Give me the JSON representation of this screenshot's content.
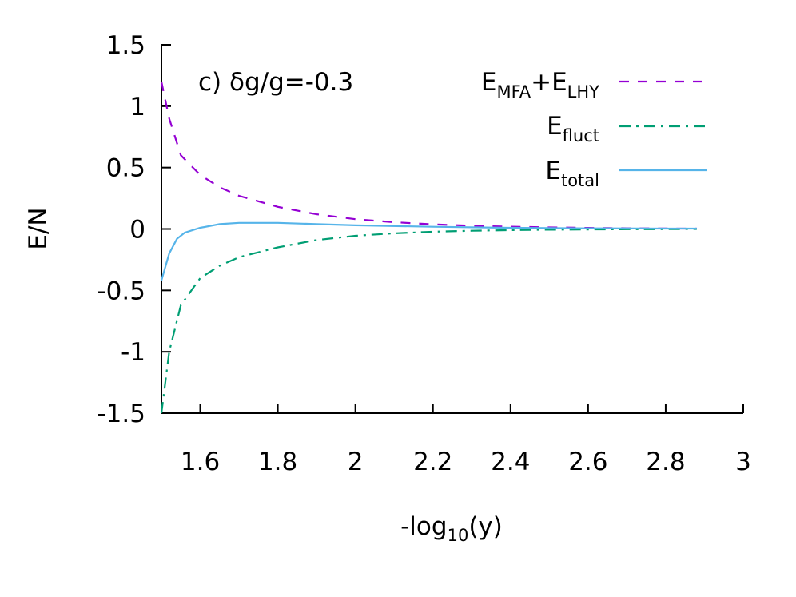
{
  "chart_data": {
    "type": "line",
    "title": "",
    "annotation": "c) δg/g=-0.3",
    "xlabel": {
      "main": "-log",
      "sub": "10",
      "tail": "(y)"
    },
    "ylabel": "E/N",
    "xlim": [
      1.5,
      3.0
    ],
    "ylim": [
      -1.5,
      1.5
    ],
    "x_ticks": [
      1.6,
      1.8,
      2.0,
      2.2,
      2.4,
      2.6,
      2.8,
      3.0
    ],
    "x_tick_labels": [
      "1.6",
      "1.8",
      "2",
      "2.2",
      "2.4",
      "2.6",
      "2.8",
      "3"
    ],
    "y_ticks": [
      -1.5,
      -1.0,
      -0.5,
      0.0,
      0.5,
      1.0,
      1.5
    ],
    "y_tick_labels": [
      "-1.5",
      "-1",
      "-0.5",
      "0",
      "0.5",
      "1",
      "1.5"
    ],
    "legend_position": "top-right",
    "series": [
      {
        "name": "E_MFA+E_LHY",
        "label_main1": "E",
        "label_sub1": "MFA",
        "label_mid": "+E",
        "label_sub2": "LHY",
        "color": "#9400d3",
        "dash": "dashed",
        "x": [
          1.5,
          1.52,
          1.55,
          1.6,
          1.65,
          1.7,
          1.8,
          1.9,
          2.0,
          2.1,
          2.2,
          2.3,
          2.4,
          2.5,
          2.6,
          2.7,
          2.8,
          2.88
        ],
        "y": [
          1.2,
          0.9,
          0.6,
          0.44,
          0.34,
          0.27,
          0.18,
          0.12,
          0.08,
          0.055,
          0.038,
          0.027,
          0.019,
          0.013,
          0.009,
          0.006,
          0.004,
          0.003
        ]
      },
      {
        "name": "E_fluct",
        "label_main1": "E",
        "label_sub1": "fluct",
        "color": "#009e73",
        "dash": "dashdot",
        "x": [
          1.5,
          1.52,
          1.55,
          1.6,
          1.65,
          1.7,
          1.8,
          1.9,
          2.0,
          2.1,
          2.2,
          2.3,
          2.4,
          2.5,
          2.6,
          2.7,
          2.8,
          2.88
        ],
        "y": [
          -1.5,
          -1.0,
          -0.62,
          -0.4,
          -0.3,
          -0.23,
          -0.15,
          -0.09,
          -0.055,
          -0.035,
          -0.022,
          -0.014,
          -0.009,
          -0.006,
          -0.004,
          -0.002,
          -0.001,
          0.0
        ]
      },
      {
        "name": "E_total",
        "label_main1": "E",
        "label_sub1": "total",
        "color": "#56b4e9",
        "dash": "solid",
        "x": [
          1.5,
          1.52,
          1.54,
          1.56,
          1.6,
          1.65,
          1.7,
          1.8,
          1.9,
          2.0,
          2.2,
          2.4,
          2.6,
          2.8,
          2.88
        ],
        "y": [
          -0.42,
          -0.2,
          -0.08,
          -0.03,
          0.01,
          0.04,
          0.05,
          0.05,
          0.04,
          0.03,
          0.018,
          0.01,
          0.005,
          0.003,
          0.003
        ]
      }
    ]
  }
}
